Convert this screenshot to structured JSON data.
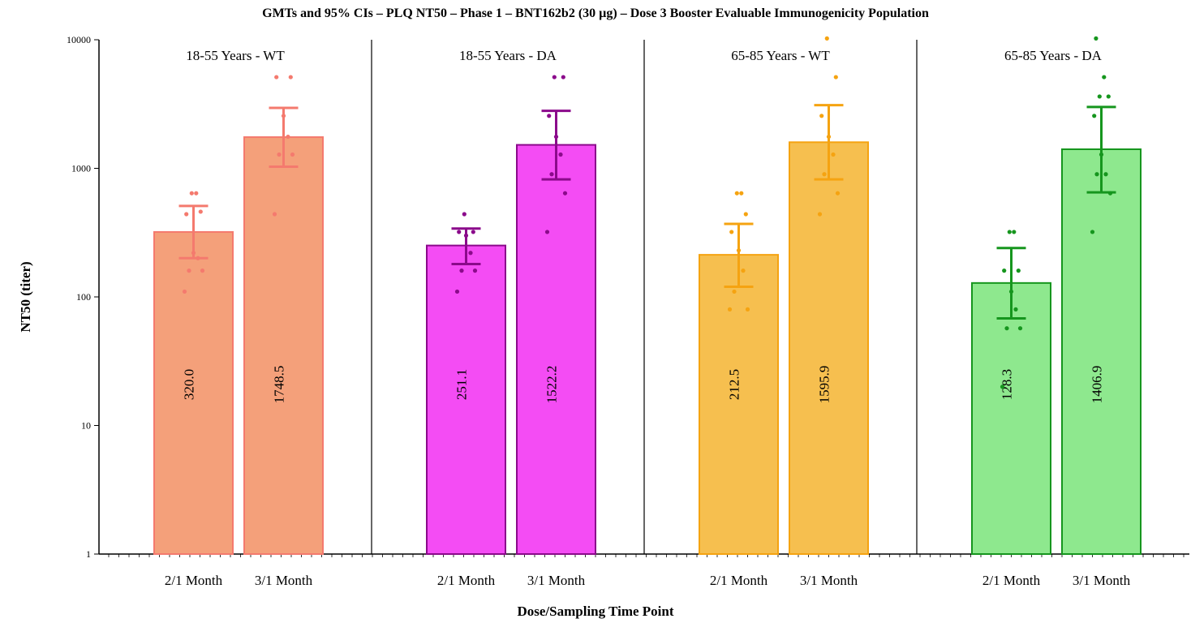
{
  "chart_data": {
    "type": "bar",
    "title": "GMTs and 95% CIs – PLQ NT50 – Phase 1 – BNT162b2 (30 µg) – Dose 3 Booster Evaluable Immunogenicity Population",
    "xlabel": "Dose/Sampling Time Point",
    "ylabel": "NT50 (titer)",
    "y_scale": "log",
    "ylim": [
      1,
      10000
    ],
    "y_ticks": [
      "1",
      "10",
      "100",
      "1000",
      "10000"
    ],
    "y_tick_values": [
      1,
      10,
      100,
      1000,
      10000
    ],
    "categories": [
      "2/1 Month",
      "3/1 Month"
    ],
    "grid": false,
    "panels": [
      {
        "name": "18-55 Years - WT",
        "color": "#f4a07a",
        "stroke": "#f47a6e",
        "bars": [
          {
            "category": "2/1 Month",
            "value": 320.0,
            "label": "320.0",
            "ci": [
              200,
              510
            ],
            "points": [
              110,
              160,
              160,
              200,
              220,
              440,
              460,
              640,
              640
            ]
          },
          {
            "category": "3/1 Month",
            "value": 1748.5,
            "label": "1748.5",
            "ci": [
              1030,
              2950
            ],
            "points": [
              440,
              1280,
              1280,
              1760,
              2560,
              5120,
              5120
            ]
          }
        ]
      },
      {
        "name": "18-55 Years - DA",
        "color": "#f44cf4",
        "stroke": "#8b0a8b",
        "bars": [
          {
            "category": "2/1 Month",
            "value": 251.1,
            "label": "251.1",
            "ci": [
              180,
              340
            ],
            "points": [
              110,
              160,
              160,
              220,
              300,
              320,
              320,
              440
            ]
          },
          {
            "category": "3/1 Month",
            "value": 1522.2,
            "label": "1522.2",
            "ci": [
              820,
              2800
            ],
            "points": [
              320,
              640,
              900,
              1280,
              1760,
              2560,
              5120,
              5120
            ]
          }
        ]
      },
      {
        "name": "65-85 Years - WT",
        "color": "#f6bf4f",
        "stroke": "#f5a311",
        "bars": [
          {
            "category": "2/1 Month",
            "value": 212.5,
            "label": "212.5",
            "ci": [
              120,
              370
            ],
            "points": [
              80,
              80,
              110,
              160,
              230,
              320,
              440,
              640,
              640
            ]
          },
          {
            "category": "3/1 Month",
            "value": 1595.9,
            "label": "1595.9",
            "ci": [
              820,
              3100
            ],
            "points": [
              440,
              640,
              900,
              1280,
              1760,
              2560,
              5120,
              10240
            ]
          }
        ]
      },
      {
        "name": "65-85 Years - DA",
        "color": "#8ee88e",
        "stroke": "#16961e",
        "bars": [
          {
            "category": "2/1 Month",
            "value": 128.3,
            "label": "128.3",
            "ci": [
              68,
              240
            ],
            "points": [
              20,
              57,
              57,
              80,
              110,
              160,
              160,
              320,
              320
            ]
          },
          {
            "category": "3/1 Month",
            "value": 1406.9,
            "label": "1406.9",
            "ci": [
              650,
              3000
            ],
            "points": [
              320,
              640,
              900,
              900,
              1280,
              2560,
              3620,
              3620,
              5120,
              10240
            ]
          }
        ]
      }
    ]
  }
}
